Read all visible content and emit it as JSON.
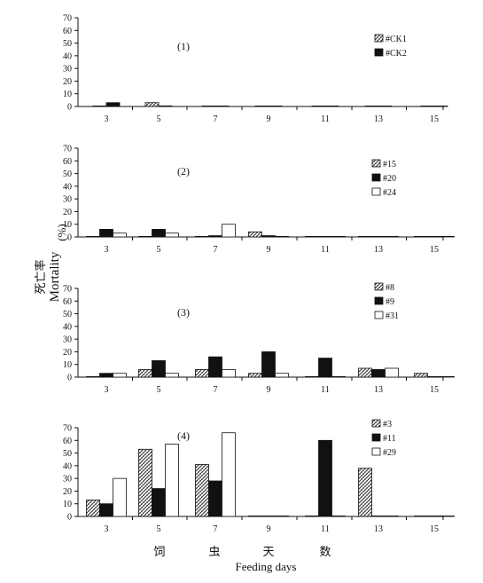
{
  "figure": {
    "ylabel_cn": "死亡率",
    "ylabel_en": "Mortality",
    "ylabel_unit": "(%)",
    "xlabel_cn": [
      "饲",
      "虫",
      "天",
      "数"
    ],
    "xlabel_en": "Feeding days"
  },
  "chart_data": [
    {
      "type": "bar",
      "panel_label": "(1)",
      "categories": [
        "3",
        "5",
        "7",
        "9",
        "11",
        "13",
        "15"
      ],
      "ylim": [
        0,
        70
      ],
      "yticks": [
        0,
        10,
        20,
        30,
        40,
        50,
        60,
        70
      ],
      "legend_position": "right",
      "series": [
        {
          "name": "#CK1",
          "pattern": "hatch",
          "values": [
            0,
            3,
            0,
            0,
            0,
            0,
            0
          ]
        },
        {
          "name": "#CK2",
          "pattern": "black",
          "values": [
            3,
            0.5,
            0,
            0,
            0,
            0,
            0
          ]
        }
      ]
    },
    {
      "type": "bar",
      "panel_label": "(2)",
      "categories": [
        "3",
        "5",
        "7",
        "9",
        "11",
        "13",
        "15"
      ],
      "ylim": [
        0,
        70
      ],
      "yticks": [
        0,
        10,
        20,
        30,
        40,
        50,
        60,
        70
      ],
      "legend_position": "right",
      "series": [
        {
          "name": "#15",
          "pattern": "hatch",
          "values": [
            0,
            0,
            0,
            4,
            0,
            0,
            0
          ]
        },
        {
          "name": "#20",
          "pattern": "black",
          "values": [
            6,
            6,
            1,
            1,
            0,
            0,
            0
          ]
        },
        {
          "name": "#24",
          "pattern": "white",
          "values": [
            3,
            3,
            10,
            0,
            0,
            0,
            0
          ]
        }
      ]
    },
    {
      "type": "bar",
      "panel_label": "(3)",
      "categories": [
        "3",
        "5",
        "7",
        "9",
        "11",
        "13",
        "15"
      ],
      "ylim": [
        0,
        70
      ],
      "yticks": [
        0,
        10,
        20,
        30,
        40,
        50,
        60,
        70
      ],
      "legend_position": "right",
      "series": [
        {
          "name": "#8",
          "pattern": "hatch",
          "values": [
            0,
            6,
            6,
            3,
            0,
            7,
            3
          ]
        },
        {
          "name": "#9",
          "pattern": "black",
          "values": [
            3,
            13,
            16,
            20,
            15,
            6,
            0
          ]
        },
        {
          "name": "#31",
          "pattern": "white",
          "values": [
            3,
            3,
            6,
            3,
            0,
            7,
            0
          ]
        }
      ]
    },
    {
      "type": "bar",
      "panel_label": "(4)",
      "categories": [
        "3",
        "5",
        "7",
        "9",
        "11",
        "13",
        "15"
      ],
      "ylim": [
        0,
        70
      ],
      "yticks": [
        0,
        10,
        20,
        30,
        40,
        50,
        60,
        70
      ],
      "legend_position": "right",
      "series": [
        {
          "name": "#3",
          "pattern": "hatch",
          "values": [
            13,
            53,
            41,
            0,
            0,
            38,
            0
          ]
        },
        {
          "name": "#11",
          "pattern": "black",
          "values": [
            10,
            22,
            28,
            0,
            60,
            0,
            0
          ]
        },
        {
          "name": "#29",
          "pattern": "white",
          "values": [
            30,
            57,
            66,
            0,
            0,
            0,
            0
          ]
        }
      ]
    }
  ]
}
